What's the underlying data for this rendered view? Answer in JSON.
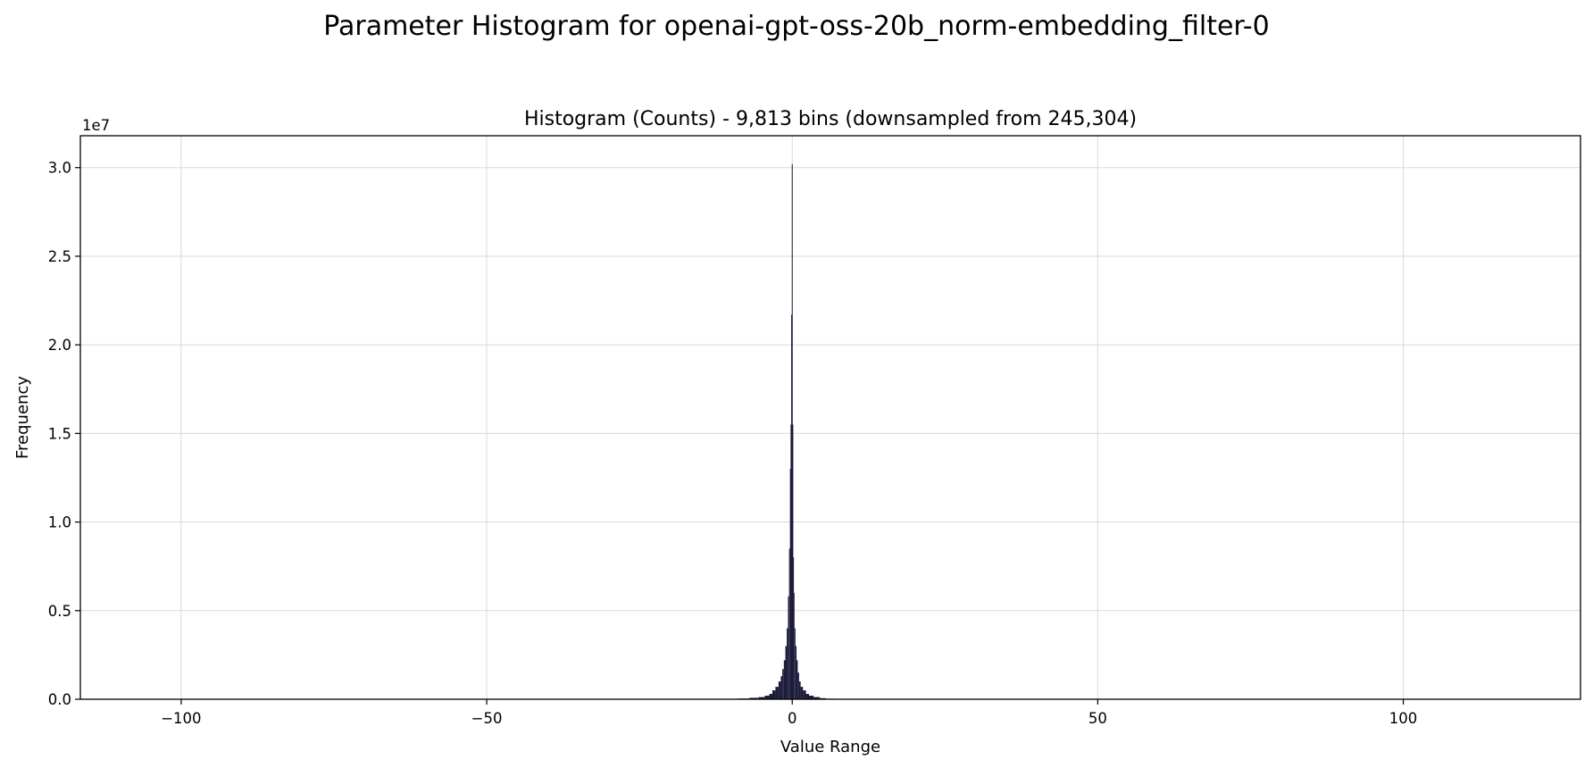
{
  "figure": {
    "suptitle": "Parameter Histogram for openai-gpt-oss-20b_norm-embedding_filter-0"
  },
  "chart_data": {
    "type": "bar",
    "title": "Histogram (Counts) - 9,813 bins (downsampled from 245,304)",
    "xlabel": "Value Range",
    "ylabel": "Frequency",
    "y_offset_label": "1e7",
    "y_multiplier": 10000000,
    "xlim": [
      -116.5,
      129
    ],
    "ylim": [
      0,
      3.18
    ],
    "grid": true,
    "bar_color": "#1b1b3a",
    "x_ticks": [
      {
        "value": -100,
        "label": "−100"
      },
      {
        "value": -50,
        "label": "−50"
      },
      {
        "value": 0,
        "label": "0"
      },
      {
        "value": 50,
        "label": "50"
      },
      {
        "value": 100,
        "label": "100"
      }
    ],
    "y_ticks": [
      {
        "value": 0.0,
        "label": "0.0"
      },
      {
        "value": 0.5,
        "label": "0.5"
      },
      {
        "value": 1.0,
        "label": "1.0"
      },
      {
        "value": 1.5,
        "label": "1.5"
      },
      {
        "value": 2.0,
        "label": "2.0"
      },
      {
        "value": 2.5,
        "label": "2.5"
      },
      {
        "value": 3.0,
        "label": "3.0"
      }
    ],
    "bins": [
      {
        "x": -10.0,
        "y": 0.002
      },
      {
        "x": -8.0,
        "y": 0.004
      },
      {
        "x": -6.0,
        "y": 0.008
      },
      {
        "x": -5.0,
        "y": 0.012
      },
      {
        "x": -4.0,
        "y": 0.02
      },
      {
        "x": -3.5,
        "y": 0.03
      },
      {
        "x": -3.0,
        "y": 0.05
      },
      {
        "x": -2.5,
        "y": 0.07
      },
      {
        "x": -2.0,
        "y": 0.1
      },
      {
        "x": -1.75,
        "y": 0.13
      },
      {
        "x": -1.5,
        "y": 0.17
      },
      {
        "x": -1.25,
        "y": 0.22
      },
      {
        "x": -1.0,
        "y": 0.3
      },
      {
        "x": -0.8,
        "y": 0.4
      },
      {
        "x": -0.6,
        "y": 0.58
      },
      {
        "x": -0.45,
        "y": 0.85
      },
      {
        "x": -0.3,
        "y": 1.3
      },
      {
        "x": -0.2,
        "y": 1.55
      },
      {
        "x": -0.1,
        "y": 2.17
      },
      {
        "x": 0.0,
        "y": 3.02
      },
      {
        "x": 0.1,
        "y": 1.55
      },
      {
        "x": 0.2,
        "y": 0.8
      },
      {
        "x": 0.3,
        "y": 0.6
      },
      {
        "x": 0.45,
        "y": 0.4
      },
      {
        "x": 0.6,
        "y": 0.3
      },
      {
        "x": 0.8,
        "y": 0.22
      },
      {
        "x": 1.0,
        "y": 0.15
      },
      {
        "x": 1.25,
        "y": 0.1
      },
      {
        "x": 1.5,
        "y": 0.07
      },
      {
        "x": 2.0,
        "y": 0.05
      },
      {
        "x": 2.5,
        "y": 0.03
      },
      {
        "x": 3.0,
        "y": 0.02
      },
      {
        "x": 4.0,
        "y": 0.012
      },
      {
        "x": 5.0,
        "y": 0.006
      },
      {
        "x": 6.0,
        "y": 0.003
      },
      {
        "x": 8.0,
        "y": 0.001
      },
      {
        "x": 10.0,
        "y": 0.0005
      }
    ]
  }
}
